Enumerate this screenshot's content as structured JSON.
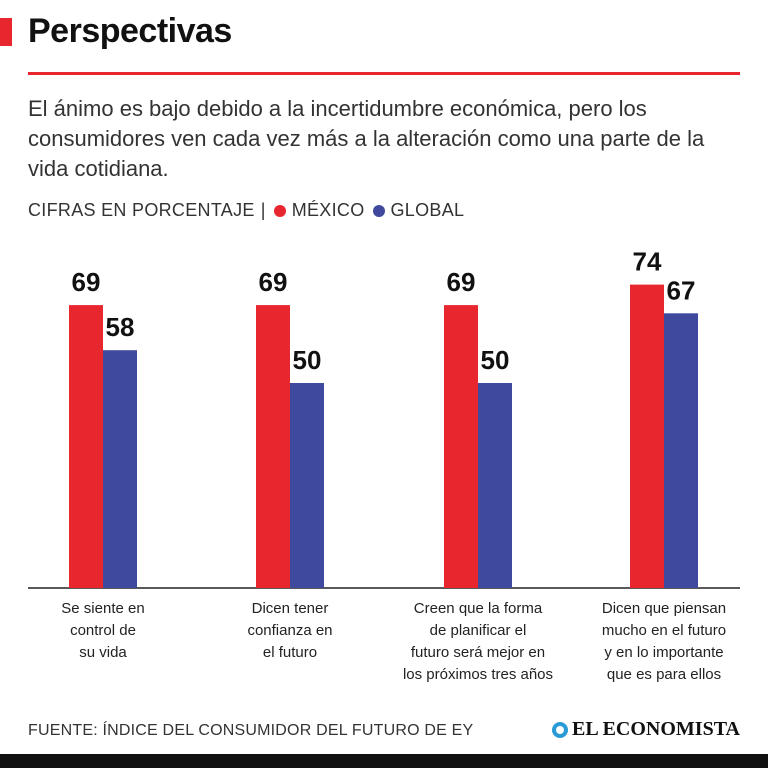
{
  "header": {
    "title": "Perspectivas",
    "subtitle": "El ánimo es bajo debido a la incertidumbre económica, pero los consumidores ven cada vez más a la alteración como una parte de la vida cotidiana."
  },
  "legend": {
    "prefix": "CIFRAS EN PORCENTAJE",
    "separator": "|",
    "mexico_label": "MÉXICO",
    "global_label": "GLOBAL"
  },
  "colors": {
    "accent": "#e8262d",
    "mexico": "#e8262d",
    "global": "#3f4a9e"
  },
  "chart_data": {
    "type": "bar",
    "categories": [
      "Se siente en\ncontrol de\nsu vida",
      "Dicen tener\nconfianza en\nel futuro",
      "Creen que la forma\nde planificar el\nfuturo será mejor en\nlos próximos tres años",
      "Dicen que piensan\nmucho en el futuro\ny en lo importante\nque es para ellos"
    ],
    "series": [
      {
        "name": "MÉXICO",
        "values": [
          69,
          69,
          69,
          74
        ]
      },
      {
        "name": "GLOBAL",
        "values": [
          58,
          50,
          50,
          67
        ]
      }
    ],
    "ylim": [
      0,
      90
    ],
    "grid": false
  },
  "footer": {
    "source": "FUENTE: ÍNDICE DEL CONSUMIDOR DEL FUTURO DE EY",
    "logo": "EL ECONOMISTA"
  }
}
